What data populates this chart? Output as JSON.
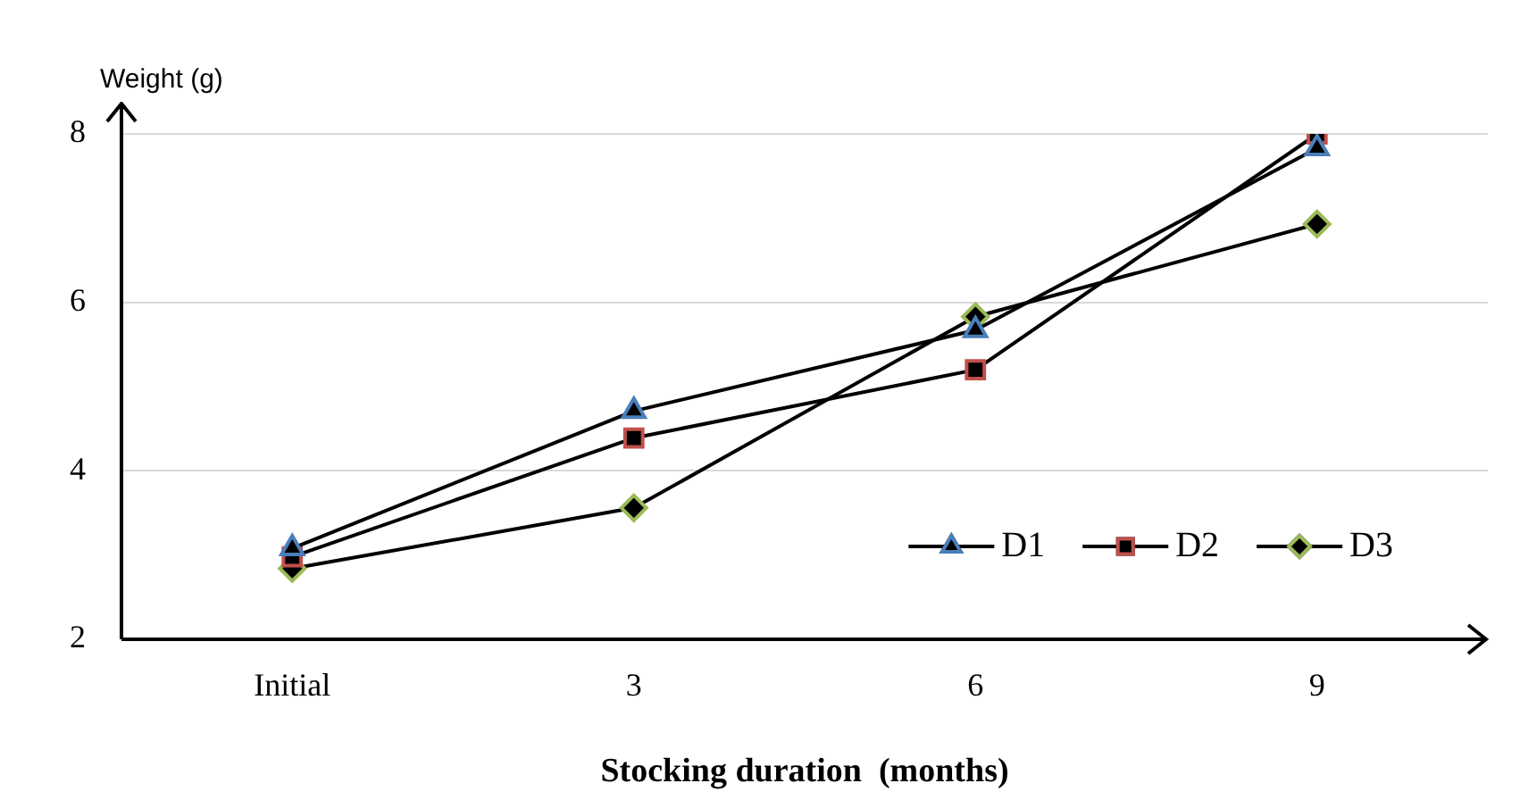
{
  "chart_data": {
    "type": "line",
    "xlabel": "Stocking duration  (months)",
    "ylabel": "Weight (g)",
    "categories": [
      "Initial",
      "3",
      "6",
      "9"
    ],
    "series": [
      {
        "name": "D1",
        "color": "#4a7ebb",
        "marker": "triangle",
        "values": [
          3.08,
          4.71,
          5.67,
          7.83
        ]
      },
      {
        "name": "D2",
        "color": "#c0504d",
        "marker": "square",
        "values": [
          2.98,
          4.39,
          5.2,
          8.0
        ]
      },
      {
        "name": "D3",
        "color": "#9bbb59",
        "marker": "diamond",
        "values": [
          2.84,
          3.56,
          5.83,
          6.93
        ]
      }
    ],
    "ylim": [
      2,
      8
    ],
    "yticks": [
      2,
      4,
      6,
      8
    ],
    "grid": "y",
    "legend": "bottom right"
  }
}
